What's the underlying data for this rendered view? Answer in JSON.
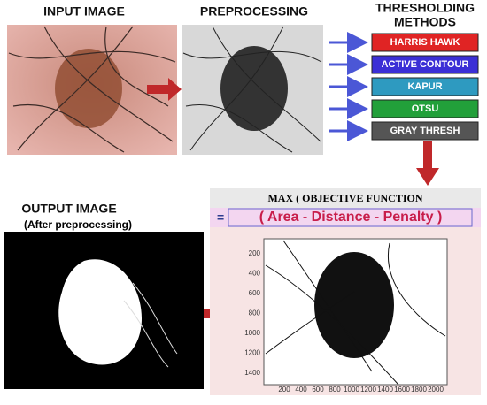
{
  "input": {
    "title": "INPUT IMAGE"
  },
  "preprocessing": {
    "title": "PREPROCESSING"
  },
  "thresholding": {
    "title_line1": "THRESHOLDING",
    "title_line2": "METHODS",
    "methods": [
      "HARRIS HAWK",
      "ACTIVE CONTOUR",
      "KAPUR",
      "OTSU",
      "GRAY THRESH"
    ]
  },
  "objective": {
    "title": "MAX ( OBJECTIVE FUNCTION",
    "equals": "=",
    "formula": "( Area - Distance - Penalty )",
    "yticks": [
      200,
      400,
      600,
      800,
      1000,
      1200,
      1400
    ],
    "xticks": [
      200,
      400,
      600,
      800,
      1000,
      1200,
      1400,
      1600,
      1800,
      2000
    ]
  },
  "output": {
    "title": "OUTPUT IMAGE",
    "subtitle": "(After preprocessing)"
  }
}
